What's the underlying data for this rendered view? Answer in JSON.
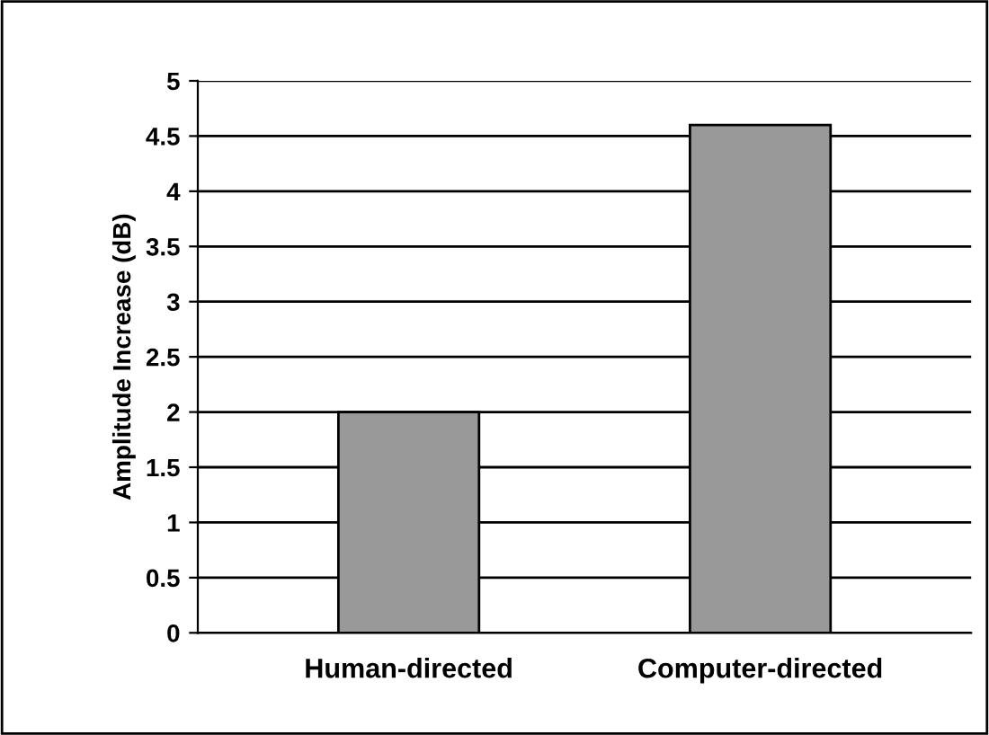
{
  "chart_data": {
    "type": "bar",
    "ylabel": "Amplitude Increase (dB)",
    "categories": [
      "Human-directed",
      "Computer-directed"
    ],
    "values": [
      2.0,
      4.6
    ],
    "color": "#999999",
    "ylim": [
      0,
      5
    ],
    "yticks": [
      0,
      0.5,
      1,
      1.5,
      2,
      2.5,
      3,
      3.5,
      4,
      4.5,
      5
    ],
    "grid": "y",
    "legend": false
  }
}
